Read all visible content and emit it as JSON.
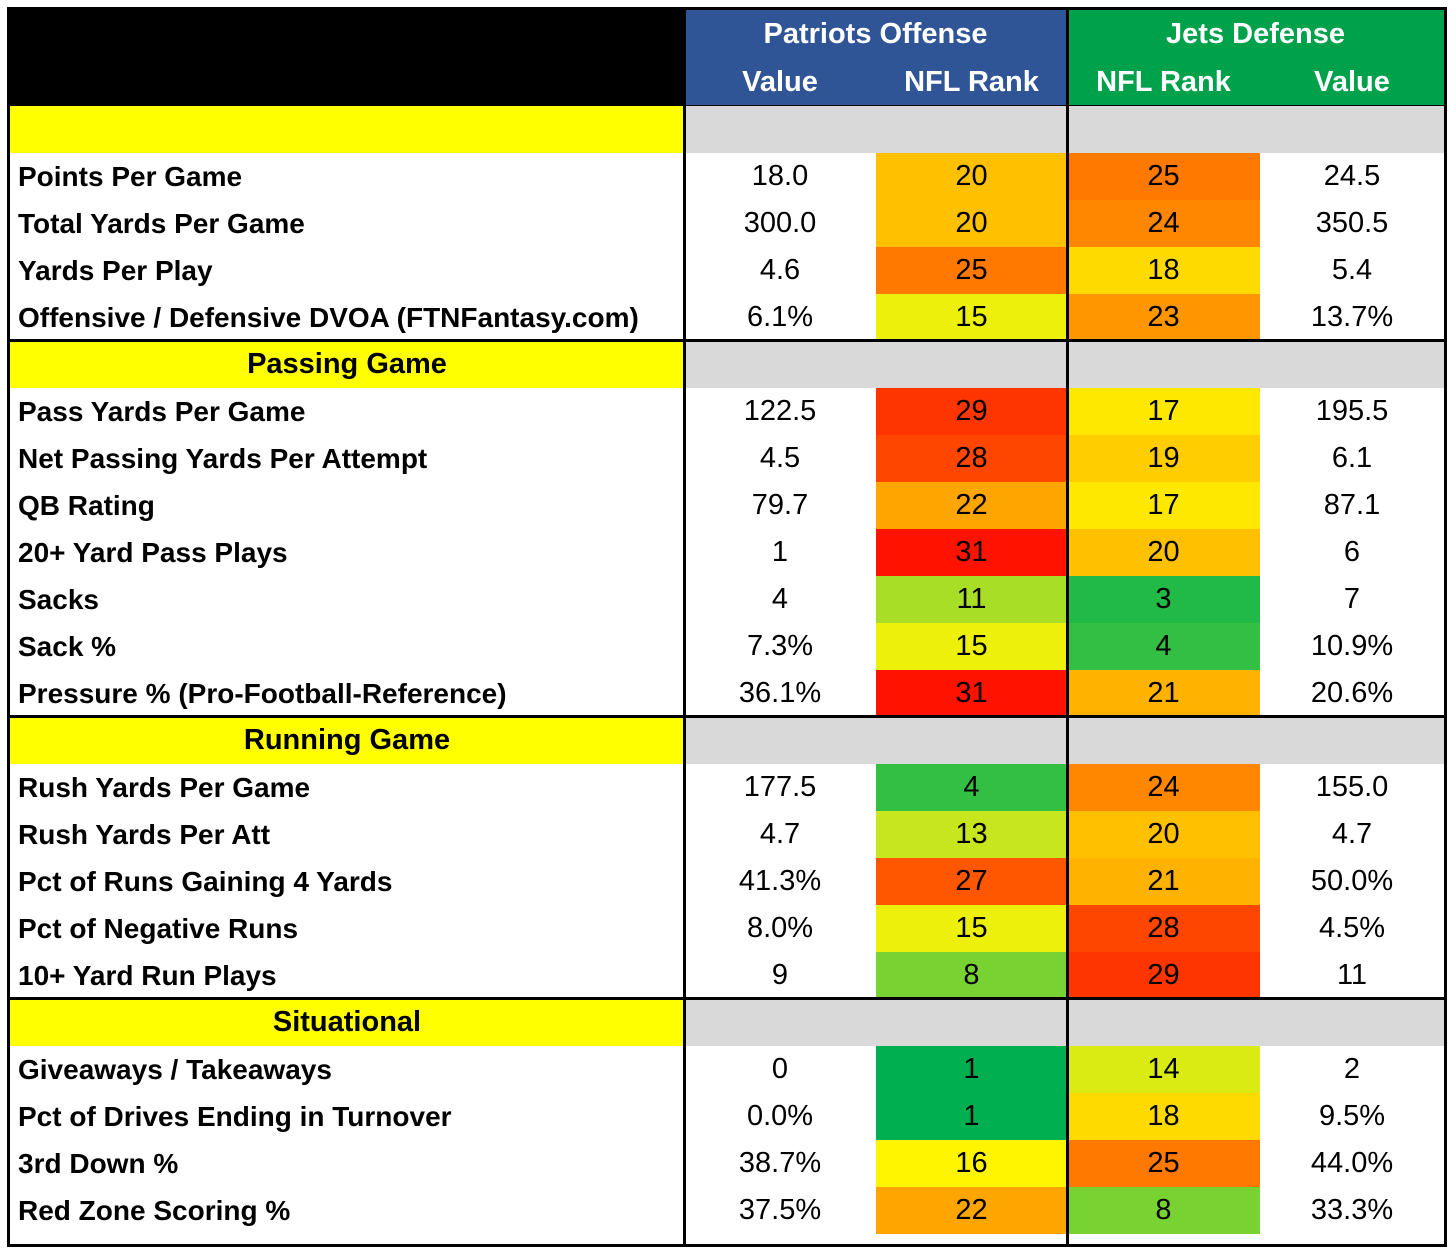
{
  "header": {
    "left_group": "Patriots Offense",
    "right_group": "Jets Defense",
    "columns": [
      "Value",
      "NFL Rank",
      "NFL Rank",
      "Value"
    ],
    "colors": {
      "left": "#2f5597",
      "right": "#00a14b",
      "corner": "#000000"
    }
  },
  "sections": [
    {
      "title": "",
      "rows": [
        {
          "label": "Points Per Game",
          "off_value": "18.0",
          "off_rank": "20",
          "def_rank": "25",
          "def_value": "24.5"
        },
        {
          "label": "Total Yards Per Game",
          "off_value": "300.0",
          "off_rank": "20",
          "def_rank": "24",
          "def_value": "350.5"
        },
        {
          "label": "Yards Per Play",
          "off_value": "4.6",
          "off_rank": "25",
          "def_rank": "18",
          "def_value": "5.4"
        },
        {
          "label": "Offensive / Defensive DVOA (FTNFantasy.com)",
          "off_value": "6.1%",
          "off_rank": "15",
          "def_rank": "23",
          "def_value": "13.7%"
        }
      ]
    },
    {
      "title": "Passing Game",
      "rows": [
        {
          "label": "Pass Yards Per Game",
          "off_value": "122.5",
          "off_rank": "29",
          "def_rank": "17",
          "def_value": "195.5"
        },
        {
          "label": "Net Passing Yards Per Attempt",
          "off_value": "4.5",
          "off_rank": "28",
          "def_rank": "19",
          "def_value": "6.1"
        },
        {
          "label": "QB Rating",
          "off_value": "79.7",
          "off_rank": "22",
          "def_rank": "17",
          "def_value": "87.1"
        },
        {
          "label": "20+ Yard Pass Plays",
          "off_value": "1",
          "off_rank": "31",
          "def_rank": "20",
          "def_value": "6"
        },
        {
          "label": "Sacks",
          "off_value": "4",
          "off_rank": "11",
          "def_rank": "3",
          "def_value": "7"
        },
        {
          "label": "Sack %",
          "off_value": "7.3%",
          "off_rank": "15",
          "def_rank": "4",
          "def_value": "10.9%"
        },
        {
          "label": "Pressure % (Pro-Football-Reference)",
          "off_value": "36.1%",
          "off_rank": "31",
          "def_rank": "21",
          "def_value": "20.6%"
        }
      ]
    },
    {
      "title": "Running Game",
      "rows": [
        {
          "label": "Rush Yards Per Game",
          "off_value": "177.5",
          "off_rank": "4",
          "def_rank": "24",
          "def_value": "155.0"
        },
        {
          "label": "Rush Yards Per Att",
          "off_value": "4.7",
          "off_rank": "13",
          "def_rank": "20",
          "def_value": "4.7"
        },
        {
          "label": "Pct of Runs Gaining 4 Yards",
          "off_value": "41.3%",
          "off_rank": "27",
          "def_rank": "21",
          "def_value": "50.0%"
        },
        {
          "label": "Pct of Negative Runs",
          "off_value": "8.0%",
          "off_rank": "15",
          "def_rank": "28",
          "def_value": "4.5%"
        },
        {
          "label": "10+ Yard Run Plays",
          "off_value": "9",
          "off_rank": "8",
          "def_rank": "29",
          "def_value": "11"
        }
      ]
    },
    {
      "title": "Situational",
      "rows": [
        {
          "label": "Giveaways / Takeaways",
          "off_value": "0",
          "off_rank": "1",
          "def_rank": "14",
          "def_value": "2"
        },
        {
          "label": "Pct of Drives Ending in Turnover",
          "off_value": "0.0%",
          "off_rank": "1",
          "def_rank": "18",
          "def_value": "9.5%"
        },
        {
          "label": "3rd Down %",
          "off_value": "38.7%",
          "off_rank": "16",
          "def_rank": "25",
          "def_value": "44.0%"
        },
        {
          "label": "Red Zone Scoring %",
          "off_value": "37.5%",
          "off_rank": "22",
          "def_rank": "8",
          "def_value": "33.3%"
        }
      ]
    }
  ]
}
